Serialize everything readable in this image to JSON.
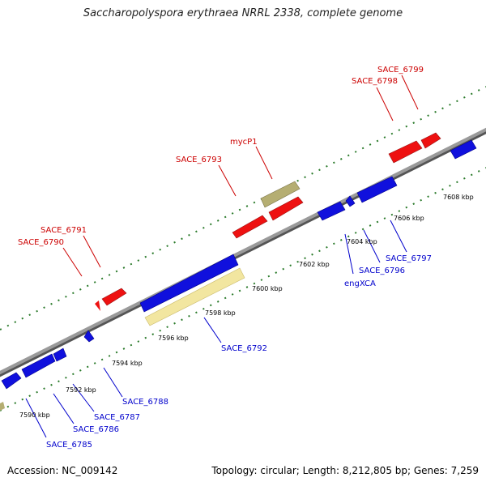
{
  "title": "Saccharopolyspora erythraea NRRL 2338, complete genome",
  "footer": {
    "accession": "Accession: NC_009142",
    "topology": "Topology: circular; Length: 8,212,805 bp; Genes: 7,259"
  },
  "colors": {
    "forward_gene": "#ee1111",
    "reverse_gene": "#1010dd",
    "forward_label": "#cc0000",
    "reverse_label": "#0000cc",
    "backbone": "#888888",
    "tick": "#2a7a2a",
    "tan_gene": "#b5ae72",
    "light_gene": "#f2e6a0"
  },
  "scale_labels": [
    "7590 kbp",
    "7592 kbp",
    "7594 kbp",
    "7596 kbp",
    "7598 kbp",
    "7600 kbp",
    "7602 kbp",
    "7604 kbp",
    "7606 kbp",
    "7608 kbp"
  ],
  "forward_labels": [
    "SACE_6790",
    "SACE_6791",
    "SACE_6793",
    "mycP1",
    "SACE_6798",
    "SACE_6799"
  ],
  "reverse_labels": [
    "SACE_6785",
    "SACE_6786",
    "SACE_6787",
    "SACE_6788",
    "SACE_6792",
    "engXCA",
    "SACE_6796",
    "SACE_6797"
  ]
}
